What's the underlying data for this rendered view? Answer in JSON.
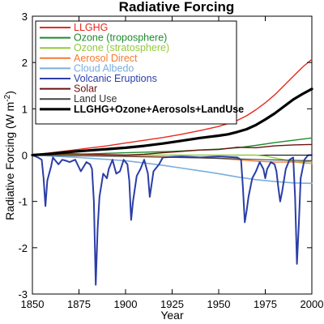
{
  "chart_data": {
    "type": "line",
    "title": "Radiative Forcing",
    "xlabel": "Year",
    "ylabel": "Radiative Forcing (W m",
    "ylabel_sup": "-2",
    "ylabel_close": ")",
    "xlim": [
      1850,
      2000
    ],
    "ylim": [
      -3,
      3
    ],
    "xticks": [
      1850,
      1875,
      1900,
      1925,
      1950,
      1975,
      2000
    ],
    "yticks": [
      -3,
      -2,
      -1,
      0,
      1,
      2,
      3
    ],
    "grid": false,
    "legend_position": "top-left",
    "series": [
      {
        "name": "LLGHG",
        "color": "#e8281e",
        "width": 1.4,
        "x": [
          1850,
          1860,
          1870,
          1880,
          1890,
          1900,
          1910,
          1920,
          1930,
          1940,
          1950,
          1955,
          1960,
          1965,
          1970,
          1975,
          1980,
          1985,
          1990,
          1995,
          2000
        ],
        "y": [
          0.0,
          0.05,
          0.1,
          0.15,
          0.2,
          0.26,
          0.32,
          0.38,
          0.45,
          0.53,
          0.62,
          0.68,
          0.75,
          0.85,
          0.98,
          1.13,
          1.3,
          1.5,
          1.7,
          1.9,
          2.07
        ]
      },
      {
        "name": "Ozone (troposphere)",
        "color": "#1e8a2e",
        "width": 1.4,
        "x": [
          1850,
          1875,
          1900,
          1925,
          1950,
          1960,
          1970,
          1980,
          1990,
          2000
        ],
        "y": [
          0.0,
          0.02,
          0.05,
          0.08,
          0.13,
          0.16,
          0.21,
          0.27,
          0.32,
          0.37
        ]
      },
      {
        "name": "Ozone (stratosphere)",
        "color": "#94c83c",
        "width": 1.4,
        "x": [
          1850,
          1900,
          1950,
          1970,
          1975,
          1980,
          1985,
          1990,
          1995,
          2000
        ],
        "y": [
          0.0,
          0.0,
          0.0,
          0.0,
          -0.02,
          -0.06,
          -0.1,
          -0.14,
          -0.17,
          -0.18
        ]
      },
      {
        "name": "Aerosol Direct",
        "color": "#f47a30",
        "width": 1.4,
        "x": [
          1850,
          1875,
          1900,
          1925,
          1950,
          1960,
          1970,
          1980,
          1990,
          2000
        ],
        "y": [
          0.0,
          -0.01,
          -0.02,
          -0.04,
          -0.07,
          -0.1,
          -0.13,
          -0.15,
          -0.15,
          -0.14
        ]
      },
      {
        "name": "Cloud Albedo",
        "color": "#7aaedc",
        "width": 1.6,
        "x": [
          1850,
          1875,
          1900,
          1910,
          1920,
          1930,
          1940,
          1950,
          1960,
          1970,
          1980,
          1990,
          2000
        ],
        "y": [
          0.0,
          -0.05,
          -0.12,
          -0.17,
          -0.22,
          -0.28,
          -0.34,
          -0.4,
          -0.47,
          -0.53,
          -0.57,
          -0.6,
          -0.61
        ]
      },
      {
        "name": "Volcanic Eruptions",
        "color": "#2b3ea6",
        "width": 2.0,
        "x": [
          1850,
          1853,
          1855,
          1856,
          1857,
          1858,
          1860,
          1861,
          1862,
          1864,
          1866,
          1868,
          1870,
          1873,
          1876,
          1879,
          1881,
          1882,
          1883,
          1884,
          1885,
          1886,
          1888,
          1890,
          1891,
          1893,
          1895,
          1897,
          1899,
          1901,
          1902,
          1903,
          1904,
          1906,
          1908,
          1910,
          1912,
          1913,
          1915,
          1918,
          1920,
          1925,
          1930,
          1935,
          1940,
          1945,
          1950,
          1955,
          1960,
          1962,
          1963,
          1964,
          1965,
          1966,
          1968,
          1970,
          1972,
          1974,
          1975,
          1976,
          1978,
          1980,
          1981,
          1982,
          1983,
          1984,
          1986,
          1988,
          1990,
          1991,
          1992,
          1993,
          1994,
          1996,
          1998,
          2000
        ],
        "y": [
          0.0,
          -0.05,
          -0.1,
          -0.5,
          -1.1,
          -0.55,
          -0.25,
          -0.05,
          -0.1,
          -0.2,
          -0.1,
          -0.12,
          -0.15,
          -0.1,
          -0.35,
          -0.15,
          -0.2,
          -0.3,
          -1.0,
          -2.8,
          -1.6,
          -0.9,
          -0.4,
          -0.5,
          -0.3,
          -0.1,
          -0.4,
          -0.35,
          -0.1,
          -0.2,
          -0.55,
          -1.4,
          -1.0,
          -0.45,
          -0.3,
          -0.1,
          -0.4,
          -0.9,
          -0.35,
          -0.2,
          -0.05,
          -0.04,
          -0.03,
          -0.04,
          -0.05,
          -0.04,
          -0.03,
          -0.04,
          -0.05,
          -0.1,
          -0.7,
          -1.45,
          -1.2,
          -0.9,
          -0.5,
          -0.35,
          -0.15,
          -0.3,
          -0.5,
          -0.3,
          -0.15,
          -0.2,
          -0.35,
          -0.7,
          -1.0,
          -0.8,
          -0.3,
          -0.1,
          -0.05,
          -0.9,
          -2.35,
          -1.5,
          -0.5,
          -0.1,
          0.0,
          0.0
        ]
      },
      {
        "name": "Solar",
        "color": "#6b1111",
        "width": 1.4,
        "x": [
          1850,
          1860,
          1870,
          1880,
          1890,
          1900,
          1910,
          1920,
          1930,
          1940,
          1950,
          1960,
          1970,
          1980,
          1990,
          2000
        ],
        "y": [
          0.0,
          0.02,
          0.03,
          0.02,
          0.01,
          0.0,
          0.02,
          0.05,
          0.08,
          0.11,
          0.12,
          0.17,
          0.16,
          0.2,
          0.22,
          0.23
        ]
      },
      {
        "name": "Land Use",
        "color": "#444444",
        "width": 1.2,
        "x": [
          1850,
          1900,
          1950,
          1975,
          2000
        ],
        "y": [
          0.0,
          -0.03,
          -0.07,
          -0.1,
          -0.12
        ]
      },
      {
        "name": "LLGHG+Ozone+Aerosols+LandUse",
        "color": "#000000",
        "width": 3.2,
        "x": [
          1850,
          1860,
          1870,
          1880,
          1890,
          1900,
          1910,
          1920,
          1930,
          1940,
          1950,
          1955,
          1960,
          1965,
          1970,
          1975,
          1980,
          1985,
          1990,
          1995,
          2000
        ],
        "y": [
          0.0,
          0.03,
          0.07,
          0.1,
          0.13,
          0.16,
          0.2,
          0.25,
          0.31,
          0.37,
          0.42,
          0.45,
          0.5,
          0.56,
          0.65,
          0.77,
          0.9,
          1.05,
          1.2,
          1.32,
          1.43
        ]
      }
    ]
  }
}
